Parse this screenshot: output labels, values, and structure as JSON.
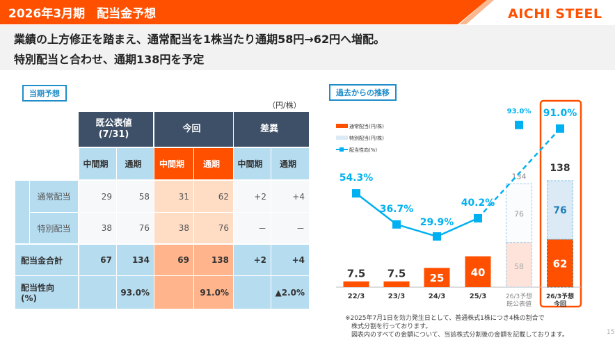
{
  "header": {
    "title": "2026年3月期　配当金予想",
    "logo": "AICHI STEEL"
  },
  "lead": [
    "業績の上方修正を踏まえ、通常配当を1株当たり通期58円→62円へ増配。",
    "特別配当と合わせ、通期138円を予定"
  ],
  "table": {
    "tag": "当期予想",
    "unit": "（円/株）",
    "groups": [
      "既公表値\n(7/31)",
      "今回",
      "差異"
    ],
    "subheaders": [
      "中間期",
      "通期",
      "中間期",
      "通期",
      "中間期",
      "通期"
    ],
    "rows": [
      {
        "label": "通常配当",
        "values": [
          "29",
          "58",
          "31",
          "62",
          "+2",
          "+4"
        ]
      },
      {
        "label": "特別配当",
        "values": [
          "38",
          "76",
          "38",
          "76",
          "－",
          "－"
        ]
      },
      {
        "label": "配当金合計",
        "values": [
          "67",
          "134",
          "69",
          "138",
          "+2",
          "+4"
        ]
      },
      {
        "label": "配当性向\n(%)",
        "values": [
          "",
          "93.0%",
          "",
          "91.0%",
          "",
          "▲2.0%"
        ]
      }
    ]
  },
  "chart_data": {
    "type": "bar",
    "tag": "過去からの推移",
    "categories": [
      "22/3",
      "23/3",
      "24/3",
      "25/3",
      "26/3予想\n既公表値",
      "26/3予想\n今回"
    ],
    "series": [
      {
        "name": "通常配当(円/株)",
        "values": [
          7.5,
          7.5,
          25,
          40,
          58,
          62
        ],
        "color": "#ff5000"
      },
      {
        "name": "特別配当(円/株)",
        "values": [
          0,
          0,
          0,
          0,
          76,
          76
        ],
        "color": "#dbeaf5"
      },
      {
        "name": "配当性向(%)",
        "type": "line",
        "values": [
          54.3,
          36.7,
          29.9,
          40.2,
          93.0,
          91.0
        ],
        "color": "#00b0f0"
      }
    ],
    "totals": [
      null,
      null,
      null,
      null,
      134,
      138
    ],
    "bar_labels": [
      "7.5",
      "7.5",
      "25",
      "40",
      "58",
      "62"
    ],
    "special_labels": [
      "",
      "",
      "",
      "",
      "76",
      "76"
    ],
    "total_labels": [
      "",
      "",
      "",
      "",
      "134",
      "138"
    ],
    "line_labels": [
      "54.3%",
      "36.7%",
      "29.9%",
      "40.2%",
      "93.0%",
      "91.0%"
    ],
    "highlight": "26/3予想\n今回"
  },
  "note": [
    "※2025年7月1日を効力発生日として、普通株式1株につき4株の割合で",
    "　株式分割を行っております。",
    "　図表内のすべての金額について、当該株式分割後の金額を記載しております。"
  ],
  "page": "15"
}
